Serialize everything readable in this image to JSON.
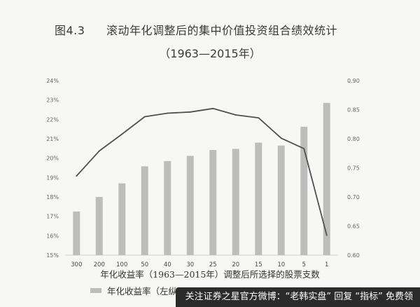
{
  "header": {
    "figure_number": "图4.3",
    "title": "滚动年化调整后的集中价值投资组合绩效统计",
    "subtitle": "（1963—2015年）"
  },
  "chart_data": {
    "type": "bar",
    "categories": [
      "300",
      "200",
      "100",
      "50",
      "40",
      "30",
      "25",
      "20",
      "15",
      "10",
      "5",
      "1"
    ],
    "series": [
      {
        "name": "年化收益率（左纵",
        "type": "bar",
        "axis": "left",
        "values": [
          17.25,
          18.0,
          18.7,
          19.58,
          19.85,
          20.12,
          20.42,
          20.48,
          20.8,
          20.65,
          21.62,
          22.85
        ]
      },
      {
        "type": "line",
        "axis": "right",
        "values": [
          0.736,
          0.779,
          0.808,
          0.838,
          0.844,
          0.846,
          0.852,
          0.841,
          0.836,
          0.801,
          0.783,
          0.634
        ]
      }
    ],
    "left_axis": {
      "ylim": [
        15,
        24
      ],
      "ticks": [
        "15%",
        "16%",
        "17%",
        "18%",
        "19%",
        "20%",
        "21%",
        "22%",
        "23%",
        "24%"
      ]
    },
    "right_axis": {
      "ylim": [
        0.6,
        0.9
      ],
      "ticks": [
        "0.60",
        "0.65",
        "0.70",
        "0.75",
        "0.80",
        "0.85",
        "0.90"
      ]
    },
    "xlabel": "年化收益率（1963—2015年）调整后所选择的股票支数",
    "legend": "bottom-left",
    "grid": false,
    "colors": {
      "bar": "#bdbdbd",
      "line": "#505050"
    }
  },
  "watermark": "关注证券之星官方微博：“老韩实盘” 回复 “指标” 免费领"
}
